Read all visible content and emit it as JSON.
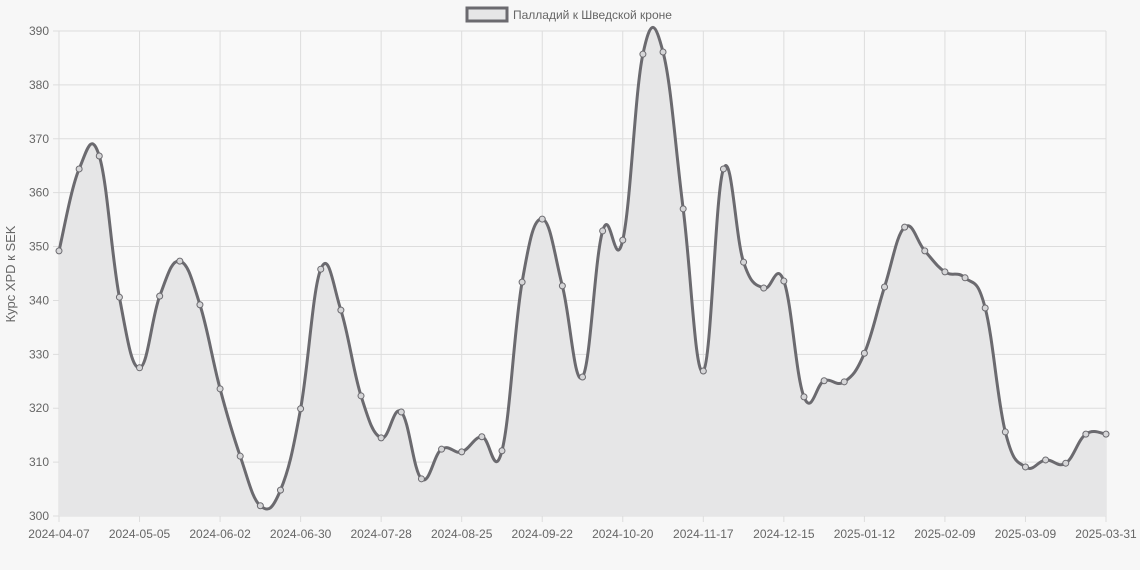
{
  "chart_data": {
    "type": "line",
    "title": "",
    "xlabel": "",
    "ylabel": "Курс XPD к SEK",
    "ylim": [
      300,
      390
    ],
    "yticks": [
      300,
      310,
      320,
      330,
      340,
      350,
      360,
      370,
      380,
      390
    ],
    "grid": true,
    "legend_placement": "top",
    "fill": true,
    "colors": {
      "line": "#6b6a6f",
      "fill": "#e6e6e7",
      "grid": "#dddddd"
    },
    "categories": [
      "2024-04-07",
      "2024-04-14",
      "2024-04-21",
      "2024-04-28",
      "2024-05-05",
      "2024-05-12",
      "2024-05-19",
      "2024-05-26",
      "2024-06-02",
      "2024-06-09",
      "2024-06-16",
      "2024-06-23",
      "2024-06-30",
      "2024-07-07",
      "2024-07-14",
      "2024-07-21",
      "2024-07-28",
      "2024-08-04",
      "2024-08-11",
      "2024-08-18",
      "2024-08-25",
      "2024-09-01",
      "2024-09-08",
      "2024-09-15",
      "2024-09-22",
      "2024-09-29",
      "2024-10-06",
      "2024-10-13",
      "2024-10-20",
      "2024-10-27",
      "2024-11-03",
      "2024-11-10",
      "2024-11-17",
      "2024-11-24",
      "2024-12-01",
      "2024-12-08",
      "2024-12-15",
      "2024-12-22",
      "2024-12-29",
      "2025-01-05",
      "2025-01-12",
      "2025-01-19",
      "2025-01-26",
      "2025-02-02",
      "2025-02-09",
      "2025-02-16",
      "2025-02-23",
      "2025-03-02",
      "2025-03-09",
      "2025-03-16",
      "2025-03-23",
      "2025-03-30",
      "2025-03-31"
    ],
    "xtick_labels": [
      "2024-04-07",
      "2024-05-05",
      "2024-06-02",
      "2024-06-30",
      "2024-07-28",
      "2024-08-25",
      "2024-09-22",
      "2024-10-20",
      "2024-11-17",
      "2024-12-15",
      "2025-01-12",
      "2025-02-09",
      "2025-03-09",
      "2025-03-31"
    ],
    "series": [
      {
        "name": "Палладий к Шведской кроне",
        "values": [
          349.2,
          364.4,
          366.8,
          340.6,
          327.5,
          340.8,
          347.3,
          339.2,
          323.6,
          311.1,
          301.9,
          304.8,
          319.9,
          345.8,
          338.2,
          322.3,
          314.5,
          319.3,
          306.9,
          312.4,
          311.9,
          314.7,
          312.1,
          343.4,
          355.1,
          342.7,
          325.8,
          352.9,
          351.2,
          385.7,
          386.1,
          357.0,
          326.9,
          364.4,
          347.1,
          342.3,
          343.6,
          322.1,
          325.1,
          324.9,
          330.2,
          342.5,
          353.6,
          349.2,
          345.3,
          344.2,
          338.6,
          315.6,
          309.1,
          310.4,
          309.8,
          315.2,
          315.2
        ]
      }
    ]
  }
}
